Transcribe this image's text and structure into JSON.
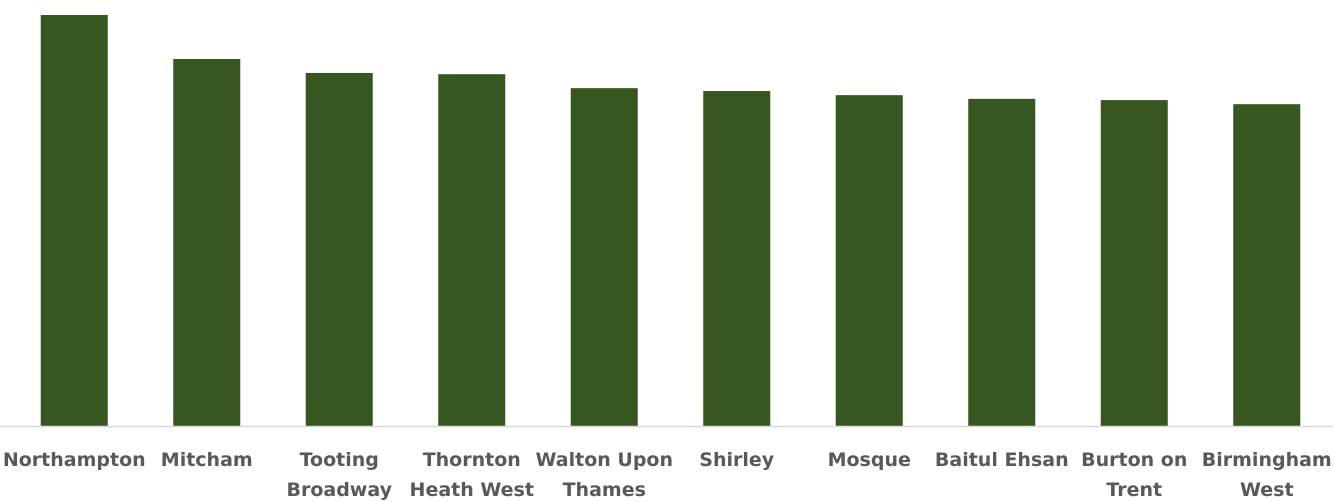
{
  "chart_data": {
    "type": "bar",
    "title": "",
    "xlabel": "",
    "ylabel": "",
    "categories": [
      [
        "Northampton"
      ],
      [
        "Mitcham"
      ],
      [
        "Tooting",
        "Broadway"
      ],
      [
        "Thornton",
        "Heath West"
      ],
      [
        "Walton Upon",
        "Thames"
      ],
      [
        "Shirley"
      ],
      [
        "Mosque"
      ],
      [
        "Baitul Ehsan"
      ],
      [
        "Burton on",
        "Trent"
      ],
      [
        "Birmingham",
        "West"
      ]
    ],
    "values": [
      100,
      89.3,
      85.9,
      85.6,
      82.2,
      81.5,
      80.5,
      79.6,
      79.3,
      78.3
    ],
    "ylim": [
      0,
      100
    ],
    "grid": false,
    "legend": "none",
    "bar_color": "#38561f",
    "axis_color": "#d9d9d9"
  }
}
